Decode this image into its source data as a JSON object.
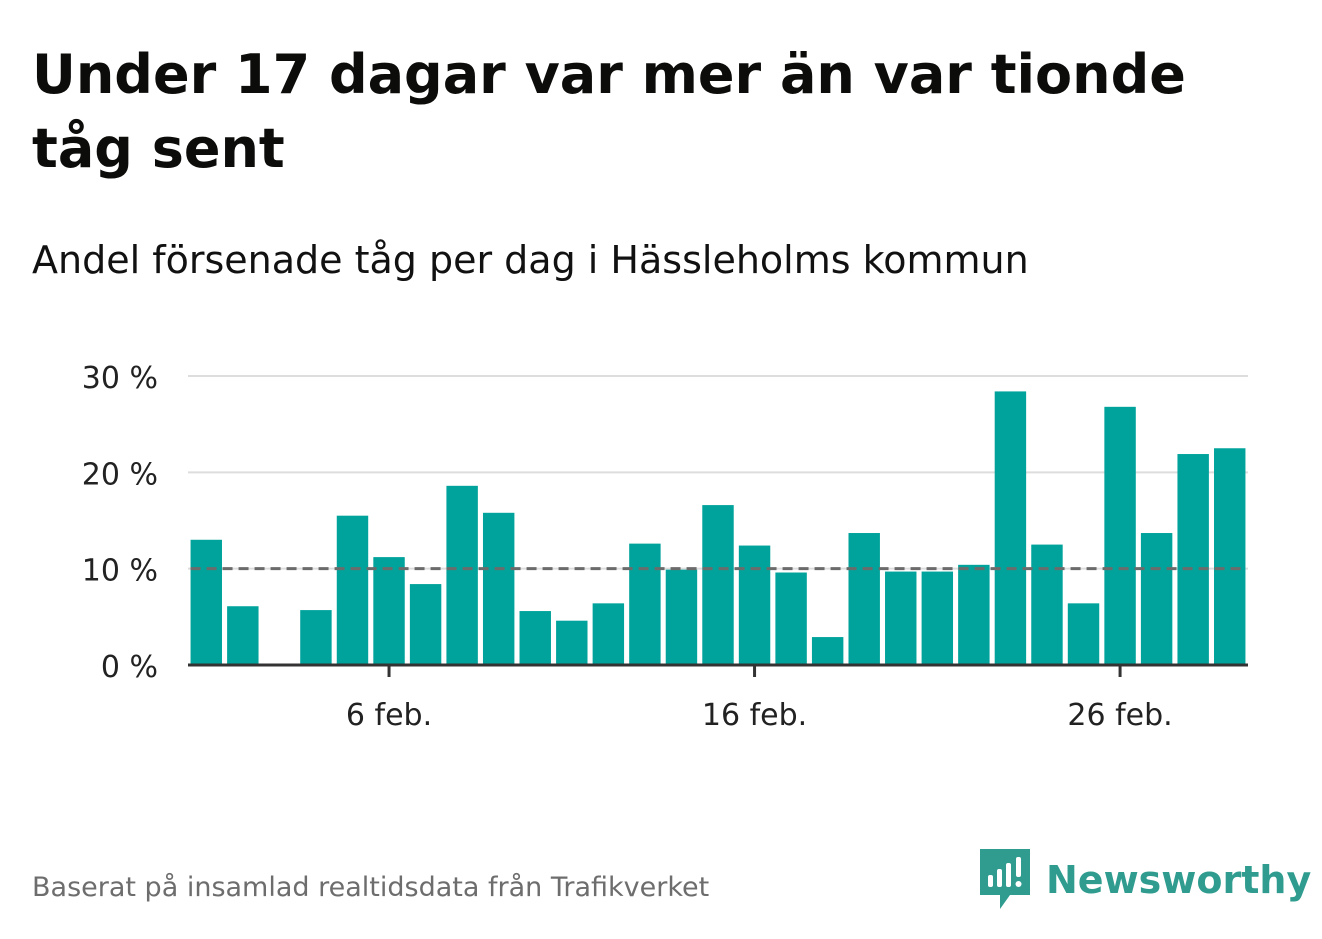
{
  "header": {
    "title": "Under 17 dagar var mer än var tionde tåg sent",
    "subtitle": "Andel försenade tåg per dag i Hässleholms kommun"
  },
  "footer": {
    "source": "Baserat på insamlad realtidsdata från Trafikverket",
    "brand": "Newsworthy"
  },
  "colors": {
    "bar": "#00a39b",
    "reference_line": "#6b6b6b",
    "grid": "#dddddd",
    "axis": "#333333",
    "brand": "#2f9c8f"
  },
  "chart_data": {
    "type": "bar",
    "title": "Under 17 dagar var mer än var tionde tåg sent",
    "subtitle": "Andel försenade tåg per dag i Hässleholms kommun",
    "x_ticks": [
      {
        "label": "6 feb.",
        "day": 6
      },
      {
        "label": "16 feb.",
        "day": 16
      },
      {
        "label": "26 feb.",
        "day": 26
      }
    ],
    "y_ticks": [
      {
        "label": "0 %",
        "value": 0
      },
      {
        "label": "10 %",
        "value": 10
      },
      {
        "label": "20 %",
        "value": 20
      },
      {
        "label": "30 %",
        "value": 30
      }
    ],
    "ylim": [
      0,
      30
    ],
    "xlim": [
      -0.5,
      28.5
    ],
    "reference_line": 10,
    "grid": true,
    "days": [
      1,
      2,
      3,
      4,
      5,
      6,
      7,
      8,
      9,
      10,
      11,
      12,
      13,
      14,
      15,
      16,
      17,
      18,
      19,
      20,
      21,
      22,
      23,
      24,
      25,
      26,
      27,
      28,
      29
    ],
    "values": [
      13.0,
      6.1,
      null,
      5.7,
      15.5,
      11.2,
      8.4,
      18.6,
      15.8,
      5.6,
      4.6,
      6.4,
      12.6,
      9.9,
      16.6,
      12.4,
      9.6,
      2.9,
      13.7,
      9.7,
      9.7,
      10.4,
      28.4,
      12.5,
      6.4,
      26.8,
      13.7,
      21.9,
      22.5
    ]
  }
}
